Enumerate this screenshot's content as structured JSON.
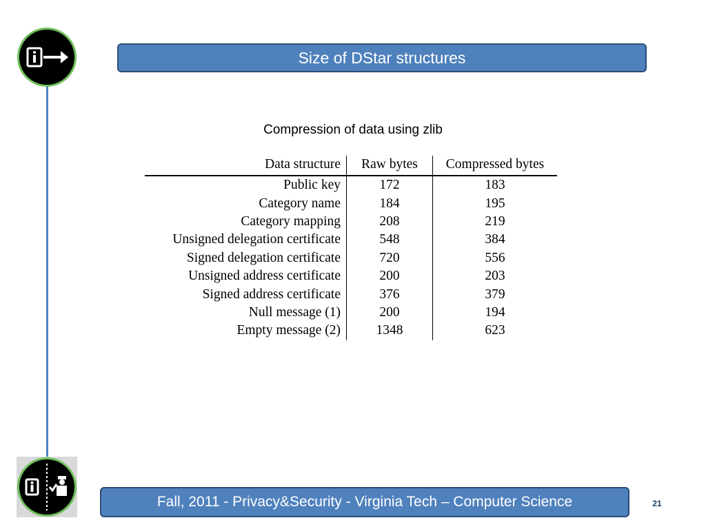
{
  "slide": {
    "title": "Size of DStar structures",
    "subtitle": "Compression of data using zlib",
    "footer": "Fall, 2011  - Privacy&Security  - Virginia Tech – Computer Science",
    "page_number": "21"
  },
  "colors": {
    "accent": "#4f81bd",
    "ring": "#6fbf5a"
  },
  "icons": {
    "top": "info-arrow-icon",
    "bottom": "info-officer-icon"
  },
  "chart_data": {
    "type": "table",
    "columns": [
      "Data structure",
      "Raw bytes",
      "Compressed bytes"
    ],
    "rows": [
      [
        "Public key",
        "172",
        "183"
      ],
      [
        "Category name",
        "184",
        "195"
      ],
      [
        "Category mapping",
        "208",
        "219"
      ],
      [
        "Unsigned delegation certificate",
        "548",
        "384"
      ],
      [
        "Signed delegation certificate",
        "720",
        "556"
      ],
      [
        "Unsigned address certificate",
        "200",
        "203"
      ],
      [
        "Signed address certificate",
        "376",
        "379"
      ],
      [
        "Null message (1)",
        "200",
        "194"
      ],
      [
        "Empty message (2)",
        "1348",
        "623"
      ]
    ]
  }
}
